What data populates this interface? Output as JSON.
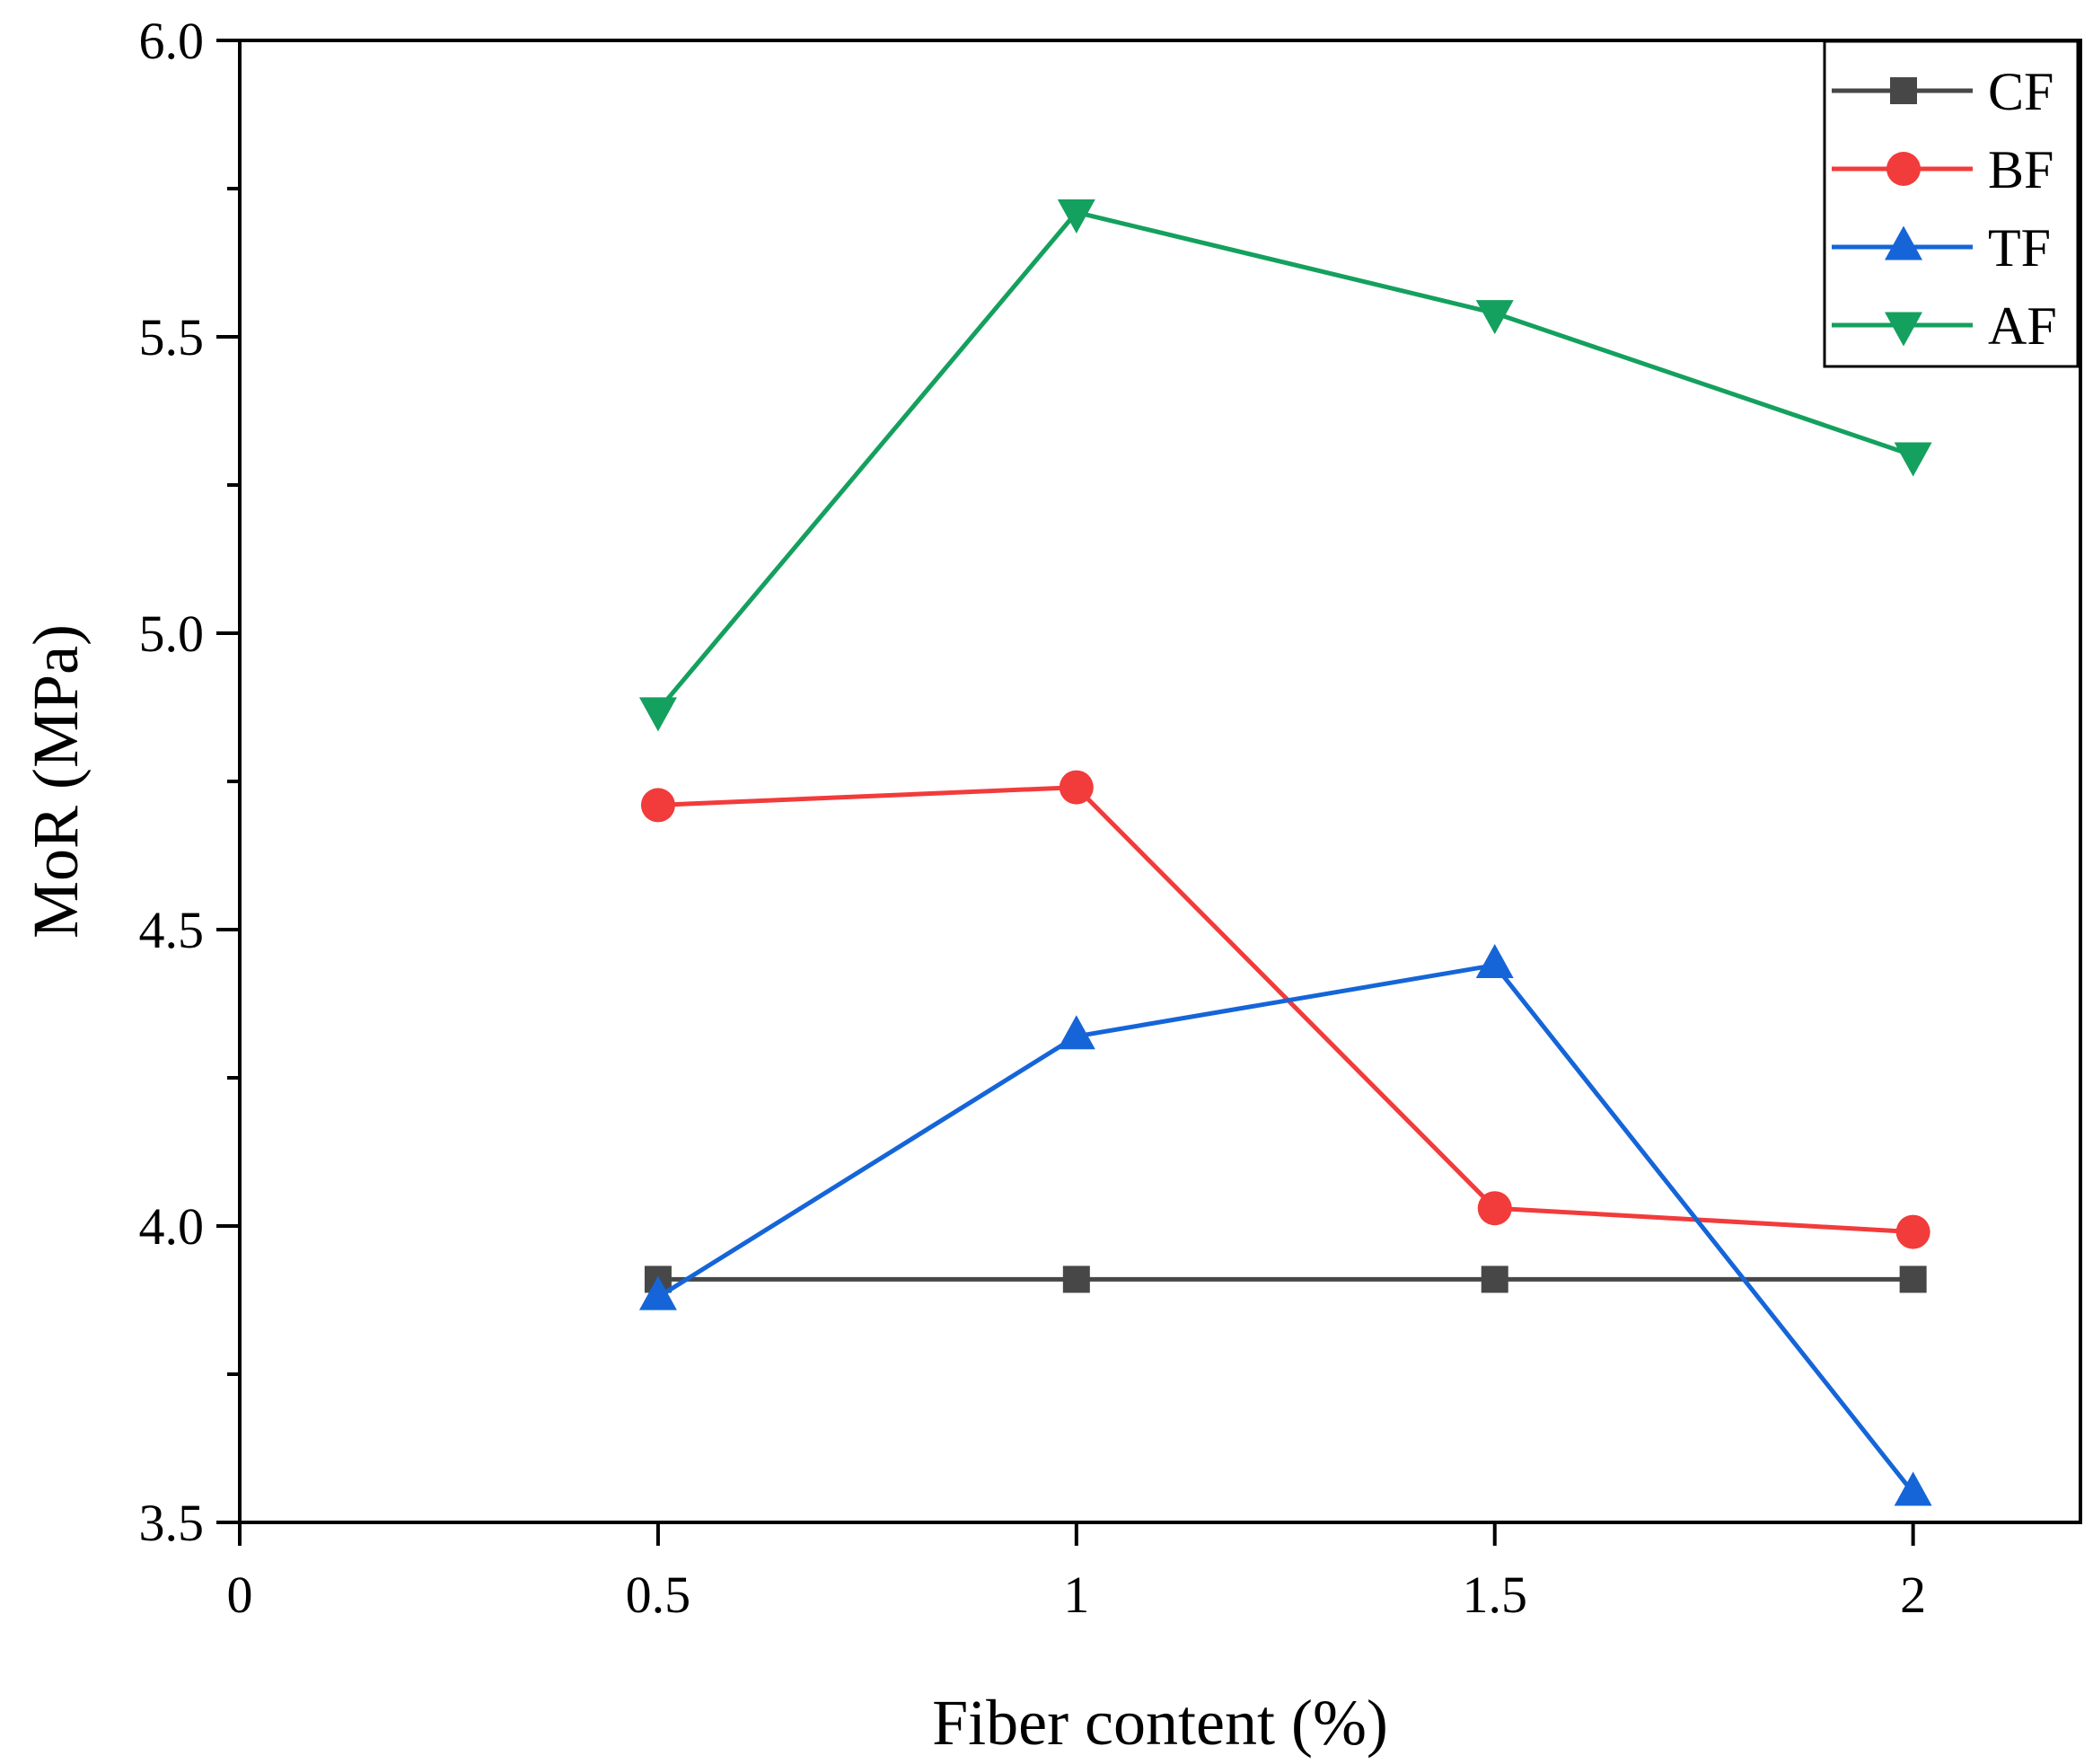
{
  "chart_data": {
    "type": "line",
    "title": "",
    "xlabel": "Fiber content (%)",
    "ylabel": "MoR (MPa)",
    "xlim": [
      0,
      2.2
    ],
    "ylim": [
      3.5,
      6.0
    ],
    "x_ticks": [
      0,
      0.5,
      1,
      1.5,
      2
    ],
    "x_tick_labels": [
      "0",
      "0.5",
      "1",
      "1.5",
      "2"
    ],
    "y_ticks": [
      3.5,
      4.0,
      4.5,
      5.0,
      5.5,
      6.0
    ],
    "y_tick_labels": [
      "3.5",
      "4.0",
      "4.5",
      "5.0",
      "5.5",
      "6.0"
    ],
    "y_minor_ticks": [
      3.75,
      4.25,
      4.75,
      5.25,
      5.75
    ],
    "grid": false,
    "legend_position": "top-right",
    "x": [
      0.5,
      1,
      1.5,
      2
    ],
    "series": [
      {
        "name": "CF",
        "values": [
          3.91,
          3.91,
          3.91,
          3.91
        ],
        "color": "#474747",
        "marker": "square"
      },
      {
        "name": "BF",
        "values": [
          4.71,
          4.74,
          4.03,
          3.99
        ],
        "color": "#f23b3b",
        "marker": "circle"
      },
      {
        "name": "TF",
        "values": [
          3.88,
          4.32,
          4.44,
          3.55
        ],
        "color": "#1565d8",
        "marker": "triangle-up"
      },
      {
        "name": "AF",
        "values": [
          4.87,
          5.71,
          5.54,
          5.3
        ],
        "color": "#14a05e",
        "marker": "triangle-down"
      }
    ]
  }
}
